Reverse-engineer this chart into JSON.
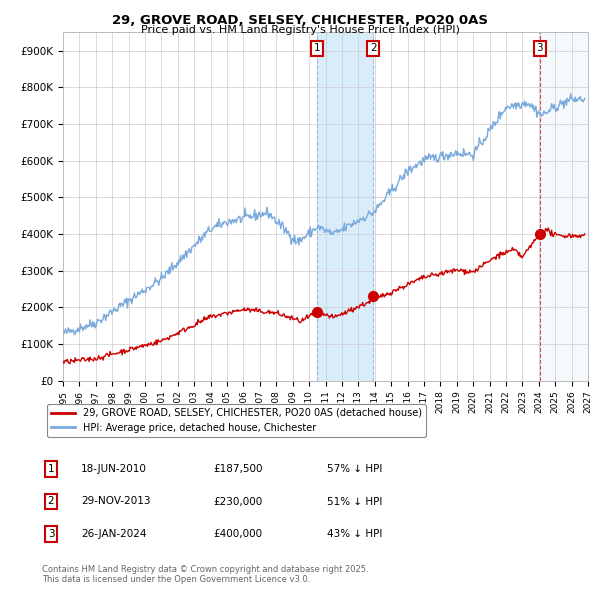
{
  "title": "29, GROVE ROAD, SELSEY, CHICHESTER, PO20 0AS",
  "subtitle": "Price paid vs. HM Land Registry's House Price Index (HPI)",
  "background_color": "#ffffff",
  "plot_bg_color": "#ffffff",
  "grid_color": "#cccccc",
  "hpi_color": "#7aaadd",
  "price_color": "#cc0000",
  "transactions": [
    {
      "date": 2010.46,
      "price": 187500,
      "label": "1"
    },
    {
      "date": 2013.91,
      "price": 230000,
      "label": "2"
    },
    {
      "date": 2024.07,
      "price": 400000,
      "label": "3"
    }
  ],
  "transaction_labels": [
    {
      "num": "1",
      "date": "18-JUN-2010",
      "price": "£187,500",
      "pct": "57% ↓ HPI"
    },
    {
      "num": "2",
      "date": "29-NOV-2013",
      "price": "£230,000",
      "pct": "51% ↓ HPI"
    },
    {
      "num": "3",
      "date": "26-JAN-2024",
      "price": "£400,000",
      "pct": "43% ↓ HPI"
    }
  ],
  "legend_line1": "29, GROVE ROAD, SELSEY, CHICHESTER, PO20 0AS (detached house)",
  "legend_line2": "HPI: Average price, detached house, Chichester",
  "footer": "Contains HM Land Registry data © Crown copyright and database right 2025.\nThis data is licensed under the Open Government Licence v3.0.",
  "xmin": 1995,
  "xmax": 2027,
  "ymin": 0,
  "ymax": 950000,
  "yticks": [
    0,
    100000,
    200000,
    300000,
    400000,
    500000,
    600000,
    700000,
    800000,
    900000
  ],
  "ytick_labels": [
    "£0",
    "£100K",
    "£200K",
    "£300K",
    "£400K",
    "£500K",
    "£600K",
    "£700K",
    "£800K",
    "£900K"
  ],
  "xticks": [
    1995,
    1996,
    1997,
    1998,
    1999,
    2000,
    2001,
    2002,
    2003,
    2004,
    2005,
    2006,
    2007,
    2008,
    2009,
    2010,
    2011,
    2012,
    2013,
    2014,
    2015,
    2016,
    2017,
    2018,
    2019,
    2020,
    2021,
    2022,
    2023,
    2024,
    2025,
    2026,
    2027
  ],
  "shade_region": [
    2010.46,
    2013.91
  ],
  "hatch_region": [
    2024.07,
    2027.0
  ]
}
